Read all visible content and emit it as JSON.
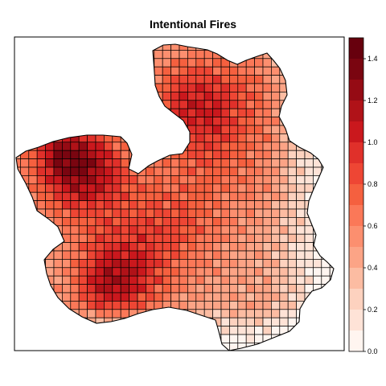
{
  "title": "Intentional Fires",
  "legend": {
    "ticks": [
      "0.0",
      "0.2",
      "0.4",
      "0.6",
      "0.8",
      "1.0",
      "1.2",
      "1.4"
    ],
    "tick_values": [
      0.0,
      0.2,
      0.4,
      0.6,
      0.8,
      1.0,
      1.2,
      1.4
    ],
    "range": [
      0.0,
      1.5
    ],
    "breaks": [
      0.0,
      0.1,
      0.2,
      0.3,
      0.4,
      0.5,
      0.6,
      0.7,
      0.8,
      0.9,
      1.0,
      1.1,
      1.2,
      1.3,
      1.4,
      1.5
    ],
    "colors": [
      "#fff5f0",
      "#fee3d7",
      "#fdd2bf",
      "#fcbca2",
      "#fca486",
      "#fc8f6f",
      "#fb7858",
      "#f5603f",
      "#ee4634",
      "#e0302a",
      "#ca181d",
      "#b01218",
      "#950b14",
      "#7a0510",
      "#67000d"
    ]
  },
  "grid_outline": "#000000"
}
